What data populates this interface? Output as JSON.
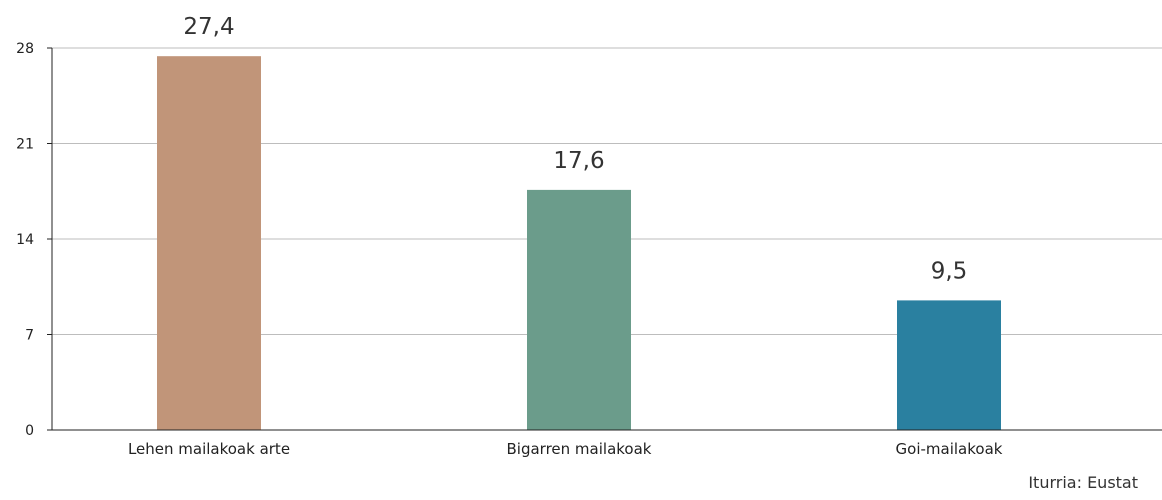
{
  "chart_data": {
    "type": "bar",
    "categories": [
      "Lehen mailakoak arte",
      "Bigarren mailakoak",
      "Goi-mailakoak"
    ],
    "values": [
      27.4,
      17.6,
      9.5
    ],
    "value_labels": [
      "27,4",
      "17,6",
      "9,5"
    ],
    "colors": [
      "#C19579",
      "#6B9C8B",
      "#2A80A0"
    ],
    "yticks": [
      0,
      7,
      14,
      21,
      28
    ],
    "ylim": [
      0,
      28
    ],
    "grid": true,
    "legend": "none"
  },
  "source": "Iturria: Eustat"
}
